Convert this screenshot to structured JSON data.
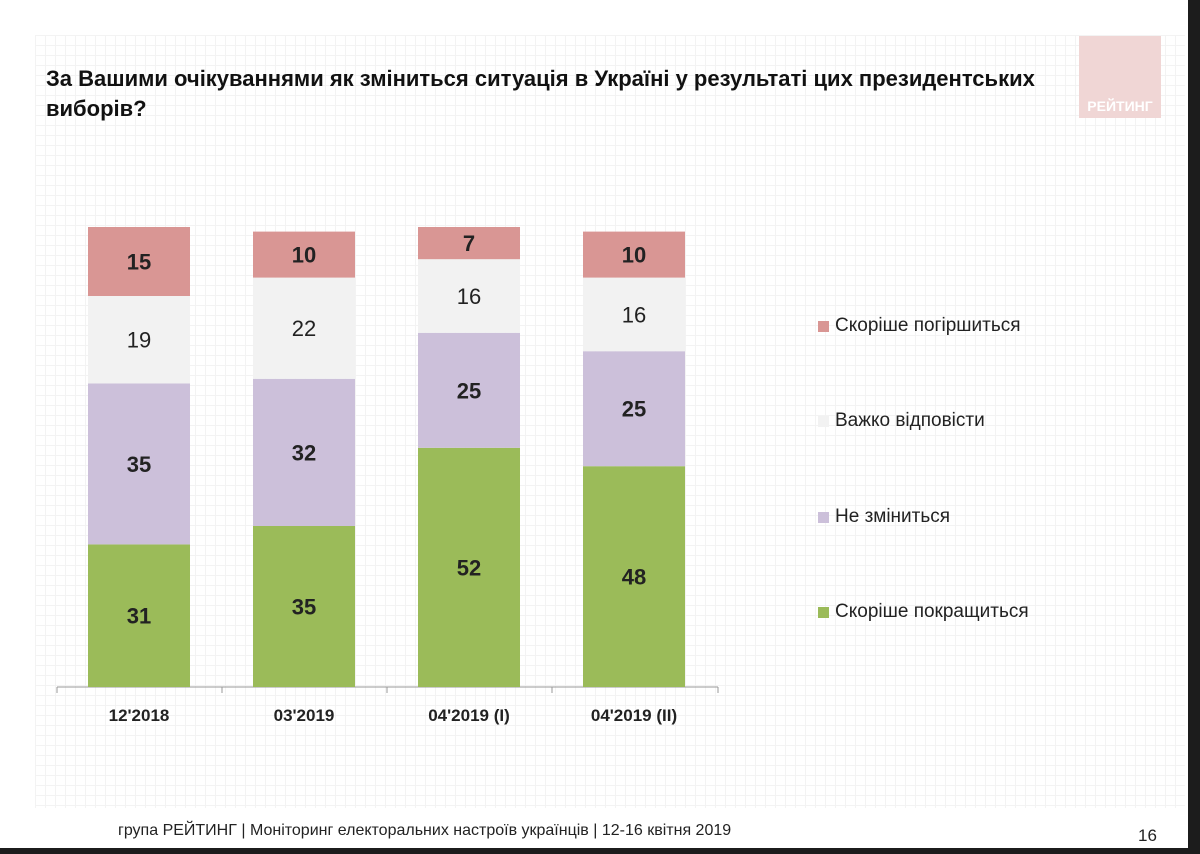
{
  "title": "За Вашими очікуваннями як зміниться ситуація в Україні у результаті цих президентських виборів?",
  "logo": "РЕЙТИНГ",
  "footer": "група РЕЙТИНГ | Моніторинг електоральних настроїв українців  |  12-16 квітня  2019",
  "page_number": "16",
  "chart_data": {
    "type": "bar",
    "stacked": true,
    "categories": [
      "12'2018",
      "03'2019",
      "04'2019 (I)",
      "04'2019 (II)"
    ],
    "series": [
      {
        "name": "Скоріше покращиться",
        "color": "#9bbb59",
        "values": [
          31,
          35,
          52,
          48
        ]
      },
      {
        "name": "Не зміниться",
        "color": "#ccc0da",
        "values": [
          35,
          32,
          25,
          25
        ]
      },
      {
        "name": "Важко відповісти",
        "color": "#f2f2f2",
        "values": [
          19,
          22,
          16,
          16
        ]
      },
      {
        "name": "Скоріше погіршиться",
        "color": "#d99694",
        "values": [
          15,
          10,
          7,
          10
        ]
      }
    ],
    "ylim": [
      0,
      100
    ],
    "grid": false,
    "legend": "right"
  }
}
